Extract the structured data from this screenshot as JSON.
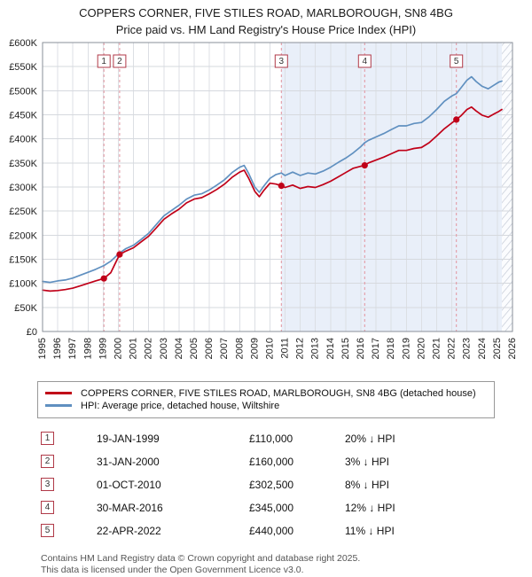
{
  "header": {
    "title_line1": "COPPERS CORNER, FIVE STILES ROAD, MARLBOROUGH, SN8 4BG",
    "title_line2": "Price paid vs. HM Land Registry's House Price Index (HPI)"
  },
  "colors": {
    "price_paid_line": "#c00018",
    "hpi_line": "#6090c0",
    "sale_dash_line": "#e2939e",
    "band_fill": "#e9eff9",
    "number_box_border": "#b03a48",
    "grid": "#d9dce1"
  },
  "chart_data": {
    "type": "line",
    "title": "COPPERS CORNER, FIVE STILES ROAD, MARLBOROUGH, SN8 4BG",
    "subtitle": "Price paid vs. HM Land Registry's House Price Index (HPI)",
    "xlabel": "",
    "ylabel": "Price",
    "x_range": [
      1995,
      2026
    ],
    "y_range_gbp_k": [
      0,
      600
    ],
    "y_tick_step_k": 50,
    "y_tick_labels": [
      "£0",
      "£50K",
      "£100K",
      "£150K",
      "£200K",
      "£250K",
      "£300K",
      "£350K",
      "£400K",
      "£450K",
      "£500K",
      "£550K",
      "£600K"
    ],
    "x_tick_labels": [
      1995,
      1996,
      1997,
      1998,
      1999,
      2000,
      2001,
      2002,
      2003,
      2004,
      2005,
      2006,
      2007,
      2008,
      2009,
      2010,
      2011,
      2012,
      2013,
      2014,
      2015,
      2016,
      2017,
      2018,
      2019,
      2020,
      2021,
      2022,
      2023,
      2024,
      2025,
      2026
    ],
    "grid": true,
    "legend_position": "bottom",
    "bands": [
      {
        "from": 2010.75,
        "to": 2025.3,
        "fill": "#e9eff9"
      },
      {
        "from": 2025.3,
        "to": 2026,
        "fill": "hatch"
      }
    ],
    "series": [
      {
        "id": "price-paid",
        "name": "COPPERS CORNER, FIVE STILES ROAD, MARLBOROUGH, SN8 4BG (detached house)",
        "color": "#c00018",
        "x": [
          1995,
          1995.5,
          1996,
          1996.5,
          1997,
          1997.5,
          1998,
          1998.5,
          1999.05,
          1999.5,
          2000.08,
          2000.5,
          2001,
          2001.5,
          2002,
          2002.5,
          2003,
          2003.5,
          2004,
          2004.5,
          2005,
          2005.5,
          2006,
          2006.5,
          2007,
          2007.5,
          2008,
          2008.3,
          2008.6,
          2009,
          2009.3,
          2009.6,
          2010,
          2010.4,
          2010.75,
          2011,
          2011.5,
          2012,
          2012.5,
          2013,
          2013.5,
          2014,
          2014.5,
          2015,
          2015.5,
          2016,
          2016.25,
          2016.5,
          2017,
          2017.5,
          2018,
          2018.5,
          2019,
          2019.5,
          2020,
          2020.5,
          2021,
          2021.5,
          2022,
          2022.3,
          2022.6,
          2023,
          2023.3,
          2023.6,
          2024,
          2024.4,
          2024.8,
          2025.1,
          2025.3
        ],
        "values_gbp_k": [
          86,
          84,
          85,
          87,
          90,
          95,
          100,
          105,
          110,
          122,
          160,
          167,
          174,
          186,
          198,
          215,
          233,
          244,
          254,
          267,
          275,
          278,
          286,
          295,
          306,
          320,
          331,
          335,
          318,
          291,
          280,
          293,
          308,
          306,
          302.5,
          299,
          304,
          297,
          301,
          299,
          305,
          312,
          321,
          330,
          339,
          343,
          345,
          350,
          356,
          362,
          369,
          376,
          376,
          380,
          382,
          392,
          406,
          421,
          433,
          440,
          448,
          461,
          466,
          458,
          449,
          445,
          452,
          457,
          461
        ]
      },
      {
        "id": "hpi",
        "name": "HPI: Average price, detached house, Wiltshire",
        "color": "#6090c0",
        "x": [
          1995,
          1995.5,
          1996,
          1996.5,
          1997,
          1997.5,
          1998,
          1998.5,
          1999.05,
          1999.5,
          2000.08,
          2000.5,
          2001,
          2001.5,
          2002,
          2002.5,
          2003,
          2003.5,
          2004,
          2004.5,
          2005,
          2005.5,
          2006,
          2006.5,
          2007,
          2007.5,
          2008,
          2008.3,
          2008.6,
          2009,
          2009.3,
          2009.6,
          2010,
          2010.4,
          2010.75,
          2011,
          2011.5,
          2012,
          2012.5,
          2013,
          2013.5,
          2014,
          2014.5,
          2015,
          2015.5,
          2016,
          2016.25,
          2016.5,
          2017,
          2017.5,
          2018,
          2018.5,
          2019,
          2019.5,
          2020,
          2020.5,
          2021,
          2021.5,
          2022,
          2022.3,
          2022.6,
          2023,
          2023.3,
          2023.6,
          2024,
          2024.4,
          2024.8,
          2025.1,
          2025.3
        ],
        "values_gbp_k": [
          104,
          102,
          105,
          107,
          111,
          117,
          123,
          129,
          137,
          146,
          163,
          172,
          179,
          191,
          204,
          222,
          240,
          251,
          262,
          275,
          283,
          286,
          294,
          304,
          315,
          330,
          341,
          345,
          328,
          300,
          289,
          302,
          318,
          326,
          329,
          324,
          331,
          324,
          329,
          327,
          333,
          341,
          351,
          360,
          371,
          384,
          392,
          397,
          404,
          411,
          419,
          427,
          427,
          432,
          434,
          446,
          461,
          478,
          489,
          494,
          506,
          522,
          529,
          519,
          509,
          504,
          512,
          518,
          520
        ]
      }
    ],
    "sale_markers": [
      {
        "label": "1",
        "x": 1999.05,
        "value": 110
      },
      {
        "label": "2",
        "x": 2000.08,
        "value": 160
      },
      {
        "label": "3",
        "x": 2010.75,
        "value": 302.5
      },
      {
        "label": "4",
        "x": 2016.25,
        "value": 345
      },
      {
        "label": "5",
        "x": 2022.3,
        "value": 440
      }
    ]
  },
  "legend": {
    "entries": [
      {
        "label": "COPPERS CORNER, FIVE STILES ROAD, MARLBOROUGH, SN8 4BG (detached house)",
        "color": "#c00018"
      },
      {
        "label": "HPI: Average price, detached house, Wiltshire",
        "color": "#6090c0"
      }
    ]
  },
  "transactions": [
    {
      "num": 1,
      "date": "19-JAN-1999",
      "price": "£110,000",
      "hpi": "20% ↓ HPI"
    },
    {
      "num": 2,
      "date": "31-JAN-2000",
      "price": "£160,000",
      "hpi": "3% ↓ HPI"
    },
    {
      "num": 3,
      "date": "01-OCT-2010",
      "price": "£302,500",
      "hpi": "8% ↓ HPI"
    },
    {
      "num": 4,
      "date": "30-MAR-2016",
      "price": "£345,000",
      "hpi": "12% ↓ HPI"
    },
    {
      "num": 5,
      "date": "22-APR-2022",
      "price": "£440,000",
      "hpi": "11% ↓ HPI"
    }
  ],
  "footer": {
    "line1": "Contains HM Land Registry data © Crown copyright and database right 2025.",
    "line2": "This data is licensed under the Open Government Licence v3.0."
  }
}
